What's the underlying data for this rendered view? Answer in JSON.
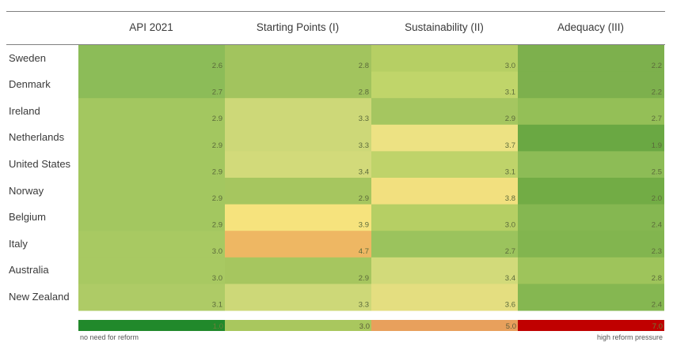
{
  "chart_data": {
    "type": "heatmap",
    "columns": [
      "API 2021",
      "Starting Points (I)",
      "Sustainability (II)",
      "Adequacy (III)"
    ],
    "rows": [
      {
        "country": "Sweden",
        "values": [
          "2.6",
          "2.8",
          "3.0",
          "2.2"
        ]
      },
      {
        "country": "Denmark",
        "values": [
          "2.7",
          "2.8",
          "3.1",
          "2.2"
        ]
      },
      {
        "country": "Ireland",
        "values": [
          "2.9",
          "3.3",
          "2.9",
          "2.7"
        ]
      },
      {
        "country": "Netherlands",
        "values": [
          "2.9",
          "3.3",
          "3.7",
          "1.9"
        ]
      },
      {
        "country": "United States",
        "values": [
          "2.9",
          "3.4",
          "3.1",
          "2.5"
        ]
      },
      {
        "country": "Norway",
        "values": [
          "2.9",
          "2.9",
          "3.8",
          "2.0"
        ]
      },
      {
        "country": "Belgium",
        "values": [
          "2.9",
          "3.9",
          "3.0",
          "2.4"
        ]
      },
      {
        "country": "Italy",
        "values": [
          "3.0",
          "4.7",
          "2.7",
          "2.3"
        ]
      },
      {
        "country": "Australia",
        "values": [
          "3.0",
          "2.9",
          "3.4",
          "2.8"
        ]
      },
      {
        "country": "New Zealand",
        "values": [
          "3.1",
          "3.3",
          "3.6",
          "2.4"
        ]
      }
    ],
    "color_scale": {
      "stops": [
        {
          "value": "1.0",
          "color": "#21892b"
        },
        {
          "value": "3.0",
          "color": "#a9c75e"
        },
        {
          "value": "5.0",
          "color": "#e8a05c"
        },
        {
          "value": "7.0",
          "color": "#c00000"
        }
      ]
    },
    "legend_left_label": "no need for reform",
    "legend_right_label": "high reform pressure",
    "cell_colors": [
      [
        "#8cbc58",
        "#a2c45e",
        "#b6cf64",
        "#7db04d"
      ],
      [
        "#8cbc58",
        "#a2c45e",
        "#c0d56a",
        "#7db04d"
      ],
      [
        "#a3c760",
        "#cdd878",
        "#a5c660",
        "#94bf57"
      ],
      [
        "#a3c760",
        "#cdd878",
        "#ede283",
        "#6aa843"
      ],
      [
        "#a3c760",
        "#d2da7a",
        "#bfd36a",
        "#8dbc56"
      ],
      [
        "#a3c760",
        "#a6c65f",
        "#f2e07f",
        "#72ac45"
      ],
      [
        "#a3c760",
        "#f6e37d",
        "#b6cf64",
        "#85b751"
      ],
      [
        "#a8c962",
        "#eeb763",
        "#9bc35d",
        "#82b54f"
      ],
      [
        "#a8c962",
        "#a6c65f",
        "#d2da7a",
        "#9ec45b"
      ],
      [
        "#aecb66",
        "#cdd878",
        "#e4de80",
        "#85b751"
      ]
    ]
  }
}
